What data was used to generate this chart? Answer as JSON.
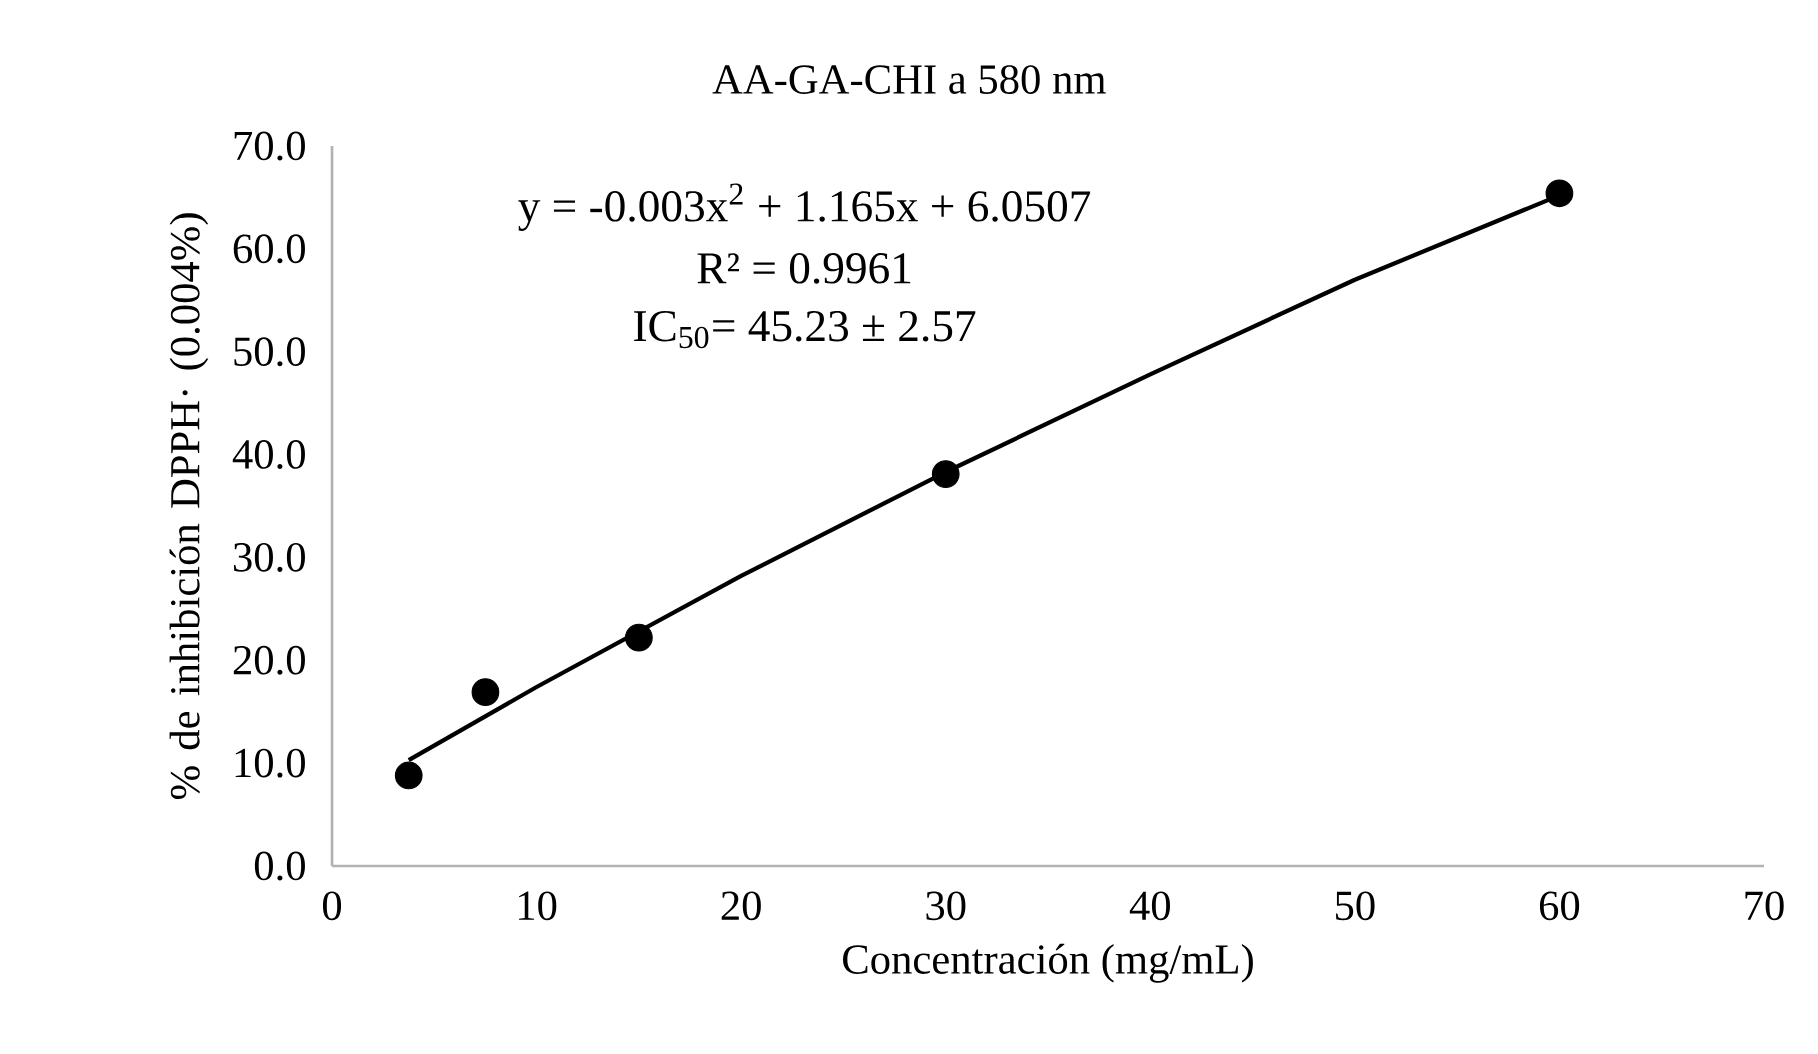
{
  "chart_data": {
    "type": "scatter",
    "title": "AA-GA-CHI a 580 nm",
    "xlabel": "Concentración (mg/mL)",
    "ylabel": "% de inhibición DPPH· (0.004%)",
    "annotations": [
      "y = -0.003x$^{2}$ + 1.165x + 6.0507",
      "R² = 0.9961",
      "IC$_{50}$= 45.23 ± 2.57"
    ],
    "x": [
      3.75,
      7.5,
      15,
      30,
      60
    ],
    "series": [
      {
        "color": "#000000",
        "marker": "circle",
        "values": [
          8.8,
          16.9,
          22.2,
          38.1,
          65.4
        ]
      },
      {
        "type": "line",
        "color": "#000000",
        "marker": "none",
        "line_style": "solid",
        "x": [
          3.75,
          10,
          20,
          30,
          40,
          50,
          60
        ],
        "values": [
          10.3,
          17.4,
          28.2,
          38.3,
          47.8,
          57.0,
          65.2
        ]
      }
    ],
    "xlim": [
      0,
      70
    ],
    "ylim": [
      0,
      70
    ],
    "xticks": [
      0,
      10,
      20,
      30,
      40,
      50,
      60,
      70
    ],
    "yticks": [
      {
        "value": 0,
        "label": "0.0"
      },
      {
        "value": 10,
        "label": "10.0"
      },
      {
        "value": 20,
        "label": "20.0"
      },
      {
        "value": 30,
        "label": "30.0"
      },
      {
        "value": 40,
        "label": "40.0"
      },
      {
        "value": 50,
        "label": "50.0"
      },
      {
        "value": 60,
        "label": "60.0"
      },
      {
        "value": 70,
        "label": "70.0"
      }
    ]
  }
}
